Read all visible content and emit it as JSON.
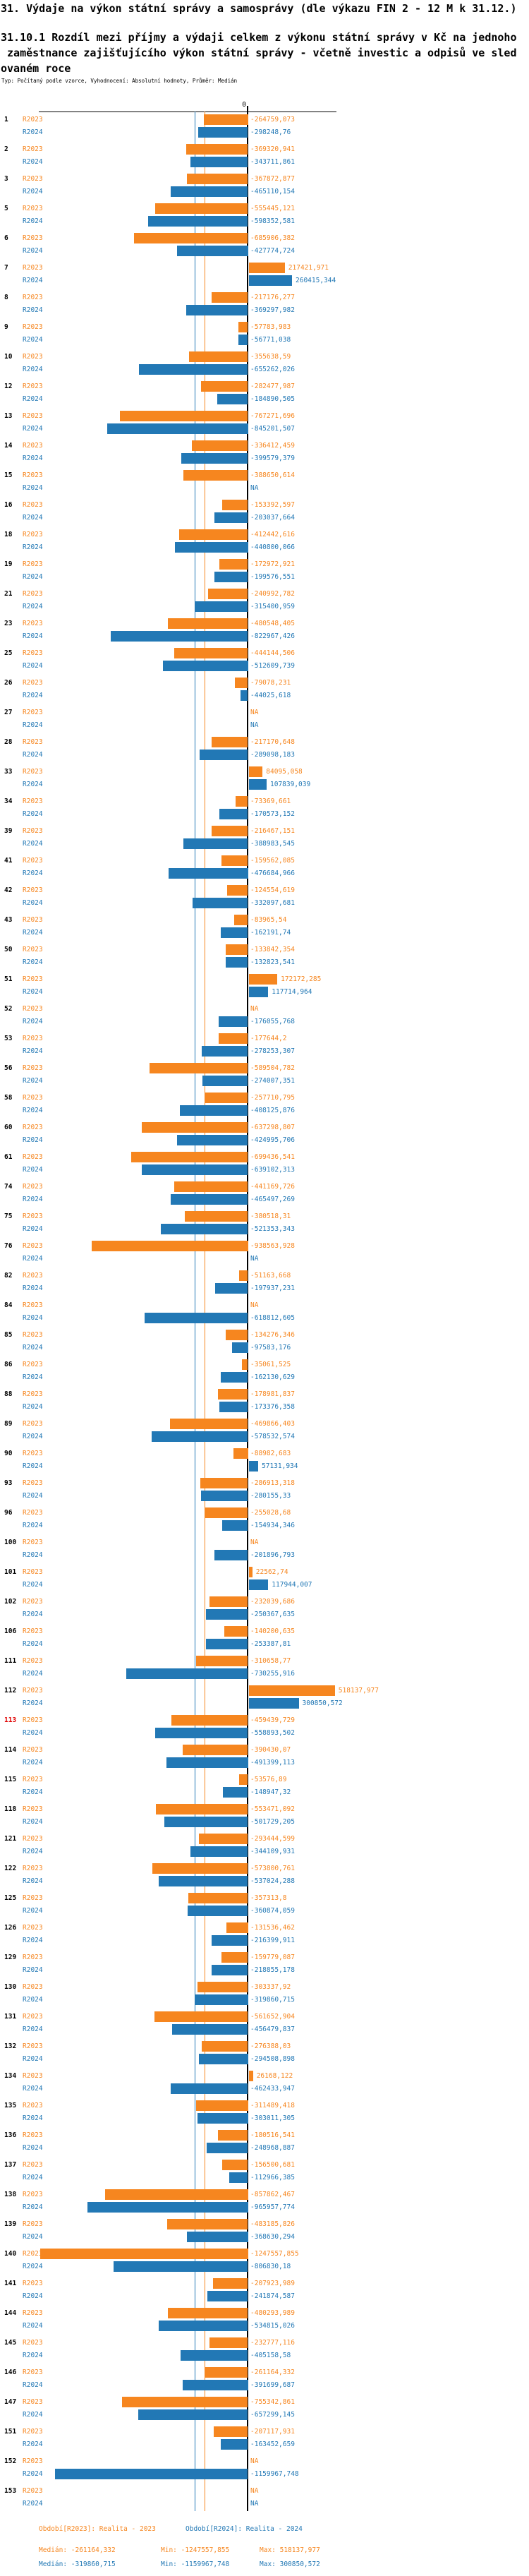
{
  "header": {
    "title": "31. Výdaje na výkon státní správy a samosprávy (dle výkazu FIN 2 - 12 M k 31.12.)",
    "subtitle_line1": "31.10.1 Rozdíl mezi příjmy a výdaji celkem z výkonu státní správy v Kč na jednoho",
    "subtitle_line2": " zaměstnance zajišťujícího výkon státní správy - včetně investic a odpisů ve sled",
    "subtitle_line3": "ovaném roce",
    "meta": "Typ: Počítaný podle vzorce, Vyhodnocení: Absolutní hodnoty, Průměr: Medián"
  },
  "colors": {
    "r2023": "#f6861f",
    "r2024": "#2278b5",
    "highlight": "#e00000",
    "axis": "#000000"
  },
  "chart_data": {
    "type": "bar",
    "orientation": "horizontal",
    "series": [
      "R2023",
      "R2024"
    ],
    "series_descriptions": [
      "Realita - 2023",
      "Realita - 2024"
    ],
    "zero_label": "0",
    "na_label": "NA",
    "axis_range": [
      -1260000,
      535000
    ],
    "medians": {
      "R2023": -261164.332,
      "R2024": -319860.715
    },
    "rows": [
      {
        "n": "1",
        "r2023": "-264759,073",
        "r2024": "-298248,76"
      },
      {
        "n": "2",
        "r2023": "-369320,941",
        "r2024": "-343711,861"
      },
      {
        "n": "3",
        "r2023": "-367872,877",
        "r2024": "-465110,154"
      },
      {
        "n": "5",
        "r2023": "-555445,121",
        "r2024": "-598352,581"
      },
      {
        "n": "6",
        "r2023": "-685906,382",
        "r2024": "-427774,724"
      },
      {
        "n": "7",
        "r2023": "217421,971",
        "r2024": "260415,344"
      },
      {
        "n": "8",
        "r2023": "-217176,277",
        "r2024": "-369297,982"
      },
      {
        "n": "9",
        "r2023": "-57783,983",
        "r2024": "-56771,038"
      },
      {
        "n": "10",
        "r2023": "-355638,59",
        "r2024": "-655262,026"
      },
      {
        "n": "12",
        "r2023": "-282477,987",
        "r2024": "-184890,505"
      },
      {
        "n": "13",
        "r2023": "-767271,696",
        "r2024": "-845201,507"
      },
      {
        "n": "14",
        "r2023": "-336412,459",
        "r2024": "-399579,379"
      },
      {
        "n": "15",
        "r2023": "-388650,614",
        "r2024": "NA"
      },
      {
        "n": "16",
        "r2023": "-153392,597",
        "r2024": "-203037,664"
      },
      {
        "n": "18",
        "r2023": "-412442,616",
        "r2024": "-440800,066"
      },
      {
        "n": "19",
        "r2023": "-172972,921",
        "r2024": "-199576,551"
      },
      {
        "n": "21",
        "r2023": "-240992,782",
        "r2024": "-315400,959"
      },
      {
        "n": "23",
        "r2023": "-480548,405",
        "r2024": "-822967,426"
      },
      {
        "n": "25",
        "r2023": "-444144,506",
        "r2024": "-512609,739"
      },
      {
        "n": "26",
        "r2023": "-79078,231",
        "r2024": "-44025,618"
      },
      {
        "n": "27",
        "r2023": "NA",
        "r2024": "NA"
      },
      {
        "n": "28",
        "r2023": "-217170,648",
        "r2024": "-289098,183"
      },
      {
        "n": "33",
        "r2023": "84095,058",
        "r2024": "107839,039"
      },
      {
        "n": "34",
        "r2023": "-73369,661",
        "r2024": "-170573,152"
      },
      {
        "n": "39",
        "r2023": "-216467,151",
        "r2024": "-388983,545"
      },
      {
        "n": "41",
        "r2023": "-159562,085",
        "r2024": "-476684,966"
      },
      {
        "n": "42",
        "r2023": "-124554,619",
        "r2024": "-332097,681"
      },
      {
        "n": "43",
        "r2023": "-83965,54",
        "r2024": "-162191,74"
      },
      {
        "n": "50",
        "r2023": "-133842,354",
        "r2024": "-132823,541"
      },
      {
        "n": "51",
        "r2023": "172172,285",
        "r2024": "117714,964"
      },
      {
        "n": "52",
        "r2023": "NA",
        "r2024": "-176055,768"
      },
      {
        "n": "53",
        "r2023": "-177644,2",
        "r2024": "-278253,307"
      },
      {
        "n": "56",
        "r2023": "-589504,782",
        "r2024": "-274007,351"
      },
      {
        "n": "58",
        "r2023": "-257710,795",
        "r2024": "-408125,876"
      },
      {
        "n": "60",
        "r2023": "-637298,807",
        "r2024": "-424995,706"
      },
      {
        "n": "61",
        "r2023": "-699436,541",
        "r2024": "-639102,313"
      },
      {
        "n": "74",
        "r2023": "-441169,726",
        "r2024": "-465497,269"
      },
      {
        "n": "75",
        "r2023": "-380518,31",
        "r2024": "-521353,343"
      },
      {
        "n": "76",
        "r2023": "-938563,928",
        "r2024": "NA"
      },
      {
        "n": "82",
        "r2023": "-51163,668",
        "r2024": "-197937,231"
      },
      {
        "n": "84",
        "r2023": "NA",
        "r2024": "-618812,605"
      },
      {
        "n": "85",
        "r2023": "-134276,346",
        "r2024": "-97583,176"
      },
      {
        "n": "86",
        "r2023": "-35061,525",
        "r2024": "-162130,629"
      },
      {
        "n": "88",
        "r2023": "-178981,837",
        "r2024": "-173376,358"
      },
      {
        "n": "89",
        "r2023": "-469866,403",
        "r2024": "-578532,574"
      },
      {
        "n": "90",
        "r2023": "-88982,683",
        "r2024": "57131,934"
      },
      {
        "n": "93",
        "r2023": "-286913,318",
        "r2024": "-280155,33"
      },
      {
        "n": "96",
        "r2023": "-255028,68",
        "r2024": "-154934,346"
      },
      {
        "n": "100",
        "r2023": "NA",
        "r2024": "-201896,793"
      },
      {
        "n": "101",
        "r2023": "22562,74",
        "r2024": "117944,007"
      },
      {
        "n": "102",
        "r2023": "-232039,686",
        "r2024": "-250367,635"
      },
      {
        "n": "106",
        "r2023": "-140200,635",
        "r2024": "-253387,81"
      },
      {
        "n": "111",
        "r2023": "-310658,77",
        "r2024": "-730255,916"
      },
      {
        "n": "112",
        "r2023": "518137,977",
        "r2024": "300850,572"
      },
      {
        "n": "113",
        "highlight": true,
        "r2023": "-459439,729",
        "r2024": "-558893,502"
      },
      {
        "n": "114",
        "r2023": "-390430,07",
        "r2024": "-491399,113"
      },
      {
        "n": "115",
        "r2023": "-53576,89",
        "r2024": "-148947,32"
      },
      {
        "n": "118",
        "r2023": "-553471,092",
        "r2024": "-501729,205"
      },
      {
        "n": "121",
        "r2023": "-293444,599",
        "r2024": "-344109,931"
      },
      {
        "n": "122",
        "r2023": "-573800,761",
        "r2024": "-537024,288"
      },
      {
        "n": "125",
        "r2023": "-357313,8",
        "r2024": "-360874,059"
      },
      {
        "n": "126",
        "r2023": "-131536,462",
        "r2024": "-216399,911"
      },
      {
        "n": "129",
        "r2023": "-159779,087",
        "r2024": "-218855,178"
      },
      {
        "n": "130",
        "r2023": "-303337,92",
        "r2024": "-319860,715"
      },
      {
        "n": "131",
        "r2023": "-561652,904",
        "r2024": "-456479,837"
      },
      {
        "n": "132",
        "r2023": "-276388,03",
        "r2024": "-294508,898"
      },
      {
        "n": "134",
        "r2023": "26168,122",
        "r2024": "-462433,947"
      },
      {
        "n": "135",
        "r2023": "-311489,418",
        "r2024": "-303011,305"
      },
      {
        "n": "136",
        "r2023": "-180516,541",
        "r2024": "-248968,887"
      },
      {
        "n": "137",
        "r2023": "-156500,681",
        "r2024": "-112966,385"
      },
      {
        "n": "138",
        "r2023": "-857862,467",
        "r2024": "-965957,774"
      },
      {
        "n": "139",
        "r2023": "-483185,826",
        "r2024": "-368630,294"
      },
      {
        "n": "140",
        "r2023": "-1247557,855",
        "r2024": "-806830,18"
      },
      {
        "n": "141",
        "r2023": "-207923,989",
        "r2024": "-241874,587"
      },
      {
        "n": "144",
        "r2023": "-480293,989",
        "r2024": "-534815,026"
      },
      {
        "n": "145",
        "r2023": "-232777,116",
        "r2024": "-405158,58"
      },
      {
        "n": "146",
        "r2023": "-261164,332",
        "r2024": "-391699,687"
      },
      {
        "n": "147",
        "r2023": "-755342,861",
        "r2024": "-657299,145"
      },
      {
        "n": "151",
        "r2023": "-207117,931",
        "r2024": "-163452,659"
      },
      {
        "n": "152",
        "r2023": "NA",
        "r2024": "-1159967,748"
      },
      {
        "n": "153",
        "r2023": "NA",
        "r2024": "NA"
      }
    ]
  },
  "footer": {
    "periods": [
      {
        "label": "Období[R2023]: Realita - 2023",
        "median": "Medián: -261164,332",
        "min": "Min: -1247557,855",
        "max": "Max: 518137,977"
      },
      {
        "label": "Období[R2024]: Realita - 2024",
        "median": "Medián: -319860,715",
        "min": "Min: -1159967,748",
        "max": "Max: 300850,572"
      }
    ]
  }
}
